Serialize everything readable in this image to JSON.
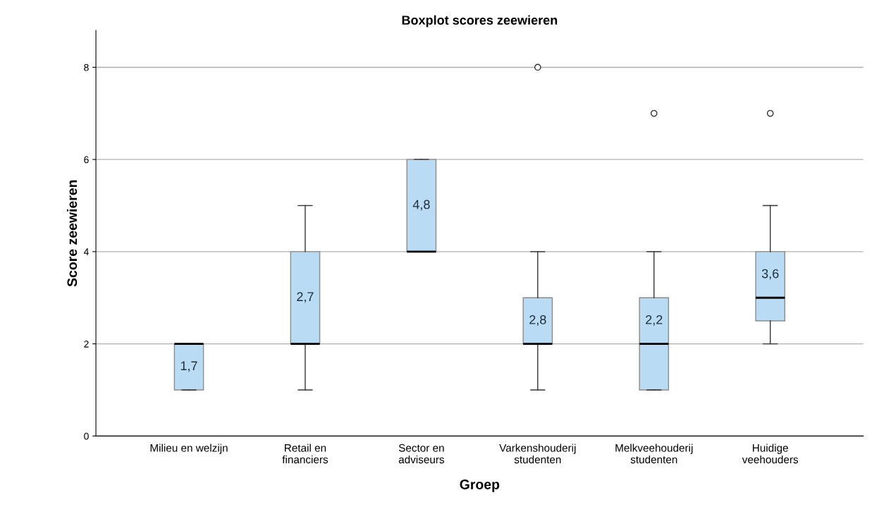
{
  "chart_data": {
    "type": "box",
    "title": "Boxplot scores zeewieren",
    "xlabel": "Groep",
    "ylabel": "Score zeewieren",
    "categories": [
      "Milieu en welzijn",
      "Retail en\nfinanciers",
      "Sector en\nadviseurs",
      "Varkenshouderij\nstudenten",
      "Melkveehouderij\nstudenten",
      "Huidige\nveehouders"
    ],
    "color": "#b9dcf4",
    "boxes": [
      {
        "low": 1,
        "q1": 1,
        "median": 2,
        "q3": 2,
        "high": 2
      },
      {
        "low": 1,
        "q1": 2,
        "median": 2,
        "q3": 4,
        "high": 5
      },
      {
        "low": 4,
        "q1": 4,
        "median": 4,
        "q3": 6,
        "high": 6
      },
      {
        "low": 1,
        "q1": 2,
        "median": 2,
        "q3": 3,
        "high": 4,
        "outliers": [
          8
        ]
      },
      {
        "low": 1,
        "q1": 1,
        "median": 2,
        "q3": 3,
        "high": 4,
        "outliers": [
          7
        ]
      },
      {
        "low": 2,
        "q1": 2.5,
        "median": 3,
        "q3": 4,
        "high": 5,
        "outliers": [
          7
        ]
      }
    ],
    "annotations": [
      "1,7",
      "2,7",
      "4,8",
      "2,8",
      "2,2",
      "3,6"
    ],
    "ylim": [
      0,
      8.8
    ],
    "yticks": [
      0,
      2,
      4,
      6,
      8
    ],
    "grid": "y"
  }
}
